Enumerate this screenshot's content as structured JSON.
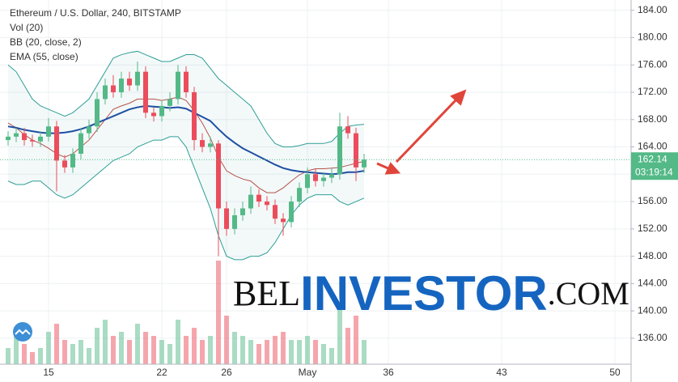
{
  "chart_data": {
    "type": "candlestick",
    "title": "Ethereum / U.S. Dollar, 240, BITSTAMP",
    "volume_label": "Vol (20)",
    "x": [
      12.5,
      13,
      13.5,
      14,
      14.5,
      15,
      15.5,
      16,
      16.5,
      17,
      17.5,
      18,
      18.5,
      19,
      19.5,
      20,
      20.5,
      21,
      21.5,
      22,
      22.5,
      23,
      23.5,
      24,
      24.5,
      25,
      25.5,
      26,
      26.5,
      27,
      27.5,
      28,
      28.5,
      29,
      29.5,
      30,
      30.5,
      31,
      31.5,
      32,
      32.5,
      33,
      33.5,
      34,
      34.5
    ],
    "open": [
      165,
      165.5,
      166,
      165,
      164.8,
      165.5,
      167,
      162,
      161,
      163,
      166,
      167,
      171,
      173,
      172,
      174,
      173,
      175,
      169,
      168.5,
      170,
      171,
      175,
      172,
      165,
      164,
      164.5,
      155,
      152,
      154,
      155,
      157,
      156,
      155.5,
      153.5,
      153,
      156,
      158,
      160,
      159,
      159.5,
      160,
      167,
      166,
      161
    ],
    "high": [
      166.3,
      166.8,
      166.8,
      165.8,
      166.3,
      168.2,
      167.8,
      162.8,
      163.8,
      166.8,
      168,
      172,
      174,
      174.5,
      175,
      175,
      176.5,
      175.8,
      169.8,
      170.8,
      172,
      176,
      175.8,
      172.8,
      166,
      165.5,
      165,
      156,
      155,
      156,
      158.2,
      157.8,
      156.8,
      156.3,
      154.3,
      156.8,
      158.8,
      161,
      160.8,
      160.3,
      161,
      169,
      168.5,
      166.8,
      163
    ],
    "low": [
      164.2,
      164.7,
      164.2,
      164,
      164,
      164.8,
      157.5,
      160.2,
      160.2,
      162.2,
      165.2,
      166.2,
      170.2,
      171.2,
      171.2,
      172.2,
      172.2,
      168.2,
      167.7,
      167.7,
      169.2,
      170.2,
      171.2,
      163.5,
      163.2,
      163.2,
      148,
      151,
      151.2,
      153.2,
      154.2,
      155.2,
      154.7,
      152.7,
      151,
      152.2,
      155.2,
      157.2,
      158.2,
      158.2,
      158.7,
      159.2,
      165.2,
      159,
      160.2
    ],
    "close": [
      165.5,
      166,
      165,
      164.8,
      165.5,
      167,
      162,
      161,
      163,
      166,
      167,
      171,
      173,
      172,
      174,
      173,
      175,
      169,
      168.5,
      170,
      171,
      175,
      172,
      165,
      164,
      164.5,
      155,
      152,
      154,
      155,
      157,
      156,
      155.5,
      153.5,
      153,
      156,
      158,
      160,
      159,
      159.5,
      160,
      167,
      166,
      161,
      162.14
    ],
    "volume": [
      20,
      35,
      25,
      15,
      20,
      40,
      50,
      30,
      25,
      30,
      20,
      45,
      55,
      35,
      40,
      30,
      50,
      40,
      35,
      30,
      25,
      55,
      35,
      45,
      30,
      35,
      128,
      60,
      40,
      35,
      30,
      25,
      30,
      35,
      40,
      30,
      30,
      35,
      30,
      25,
      20,
      70,
      45,
      60,
      30
    ],
    "up_color": "#53b987",
    "down_color": "#eb4d5c",
    "indicators": [
      {
        "name": "BB (20, close, 2)",
        "color": "#2e9e96",
        "basis_color": "#b5534a",
        "upper": [
          176,
          175,
          173,
          171,
          170,
          169.5,
          169,
          168.5,
          169,
          170,
          171,
          173,
          175,
          177,
          177.5,
          177.8,
          178,
          177.5,
          177,
          176.5,
          176.5,
          177,
          177.5,
          177.5,
          177,
          175.5,
          174,
          173,
          172,
          171,
          170,
          168,
          166,
          164.5,
          164,
          164,
          164.2,
          164.5,
          164.5,
          164.5,
          164.8,
          166,
          167,
          167.2,
          167.3
        ],
        "basis": [
          167.5,
          166.8,
          165.8,
          165,
          164.5,
          163.8,
          163,
          162.5,
          163,
          164,
          165,
          166.5,
          168,
          169.5,
          170,
          170.4,
          171,
          171,
          171,
          170.8,
          171,
          171.3,
          170.8,
          169.3,
          167.5,
          165.3,
          162.5,
          160.5,
          159.8,
          159.3,
          159,
          158,
          157.3,
          157.3,
          158,
          159,
          159.9,
          160.5,
          160.8,
          160.8,
          160.9,
          161,
          161.3,
          161.6,
          161.9
        ],
        "lower": [
          159,
          158.5,
          158.5,
          159,
          159,
          158,
          157,
          156.5,
          157,
          158,
          159,
          160,
          161,
          162,
          162.5,
          163,
          164,
          164.5,
          165,
          165,
          165.5,
          165.5,
          164,
          161,
          158,
          155,
          151,
          148,
          147.5,
          147.5,
          148,
          148,
          148.5,
          150,
          152,
          154,
          155.5,
          156.5,
          157,
          157,
          157,
          156,
          155.5,
          156,
          156.5
        ]
      },
      {
        "name": "EMA (55, close)",
        "color": "#1e4fa3",
        "values": [
          167,
          166.8,
          166.5,
          166.3,
          166.1,
          166,
          166,
          166.1,
          166.3,
          166.6,
          167,
          167.5,
          168,
          168.5,
          169,
          169.5,
          169.8,
          170,
          169.9,
          169.8,
          169.7,
          169.8,
          169.6,
          169,
          168.4,
          167.8,
          166.6,
          165.5,
          164.6,
          163.8,
          163.2,
          162.6,
          162,
          161.4,
          160.9,
          160.6,
          160.4,
          160.3,
          160.2,
          160.1,
          160,
          160.1,
          160.3,
          160.3,
          160.5
        ]
      }
    ],
    "xlim": [
      12,
      51
    ],
    "xticks": [
      15,
      22,
      26,
      {
        "value": 31,
        "label": "May"
      },
      36,
      43,
      50
    ],
    "ylim": [
      132.2,
      185.5
    ],
    "yticks": [
      {
        "value": 136,
        "label": "136.00"
      },
      {
        "value": 140,
        "label": "140.00"
      },
      {
        "value": 144,
        "label": "144.00"
      },
      {
        "value": 148,
        "label": "148.00"
      },
      {
        "value": 152,
        "label": "152.00"
      },
      {
        "value": 156,
        "label": "156.00"
      },
      {
        "value": 160,
        "label": "160.00"
      },
      {
        "value": 164,
        "label": "164.00"
      },
      {
        "value": 168,
        "label": "168.00"
      },
      {
        "value": 172,
        "label": "172.00"
      },
      {
        "value": 176,
        "label": "176.00"
      },
      {
        "value": 180,
        "label": "180.00"
      },
      {
        "value": 184,
        "label": "184.00"
      }
    ],
    "grid": true,
    "price_tag": {
      "price": 162.14,
      "countdown": "03:19:14",
      "color": "#53b987"
    }
  },
  "watermark": {
    "prefix": "BEL",
    "brand": "INVESTOR",
    "suffix": ".COM"
  }
}
